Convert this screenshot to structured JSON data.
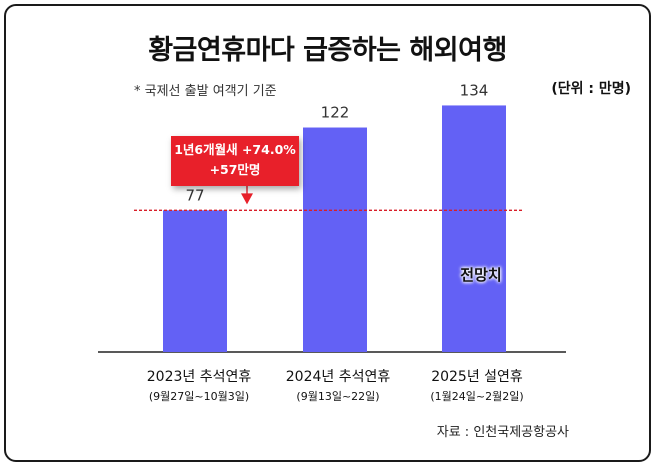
{
  "chart_data": {
    "type": "bar",
    "title": "황금연휴마다 급증하는 해외여행",
    "subtitle": "* 국제선 출발 여객기 기준",
    "unit": "(단위 : 만명)",
    "categories": [
      "2023년 추석연휴",
      "2024년 추석연휴",
      "2025년 설연휴"
    ],
    "periods": [
      "(9월27일~10월3일)",
      "(9월13일~22일)",
      "(1월24일~2월2일)"
    ],
    "values": [
      77,
      122,
      134
    ],
    "value_labels": [
      "77",
      "122",
      "134"
    ],
    "ylim": [
      0,
      150
    ],
    "bar_color": "#6361f5",
    "reference_line": {
      "value": 77,
      "color": "#d81e28",
      "style": "dotted"
    },
    "callout": {
      "line1": "1년6개월새 +74.0%",
      "line2": "+57만명",
      "color": "#e8202a"
    },
    "forecast_label": "전망치",
    "source": "자료 : 인천국제공항공사",
    "grid": false,
    "legend": "none"
  }
}
